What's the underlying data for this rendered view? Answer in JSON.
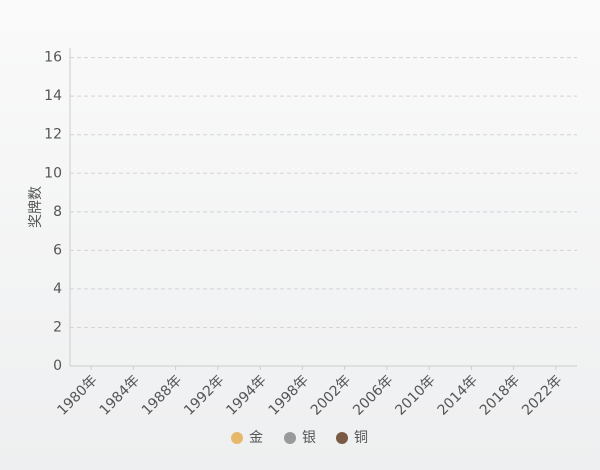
{
  "chart_data": {
    "type": "bar",
    "y_label": "奖牌数",
    "categories": [
      "1980年",
      "1984年",
      "1988年",
      "1992年",
      "1994年",
      "1998年",
      "2002年",
      "2006年",
      "2010年",
      "2014年",
      "2018年",
      "2022年"
    ],
    "series": [
      {
        "name": "金",
        "color": "#e8b86a",
        "values": [
          0,
          0,
          0,
          0,
          0,
          0,
          0,
          0,
          0,
          0,
          0,
          0
        ]
      },
      {
        "name": "银",
        "color": "#999999",
        "values": [
          0,
          0,
          0,
          0,
          0,
          0,
          0,
          0,
          0,
          0,
          0,
          0
        ]
      },
      {
        "name": "铜",
        "color": "#7a5a44",
        "values": [
          0,
          0,
          0,
          0,
          0,
          0,
          0,
          0,
          0,
          0,
          0,
          0
        ]
      }
    ],
    "ylim": [
      0,
      16.5
    ],
    "yticks": [
      0,
      2,
      4,
      6,
      8,
      10,
      12,
      14,
      16
    ],
    "grid": true
  }
}
